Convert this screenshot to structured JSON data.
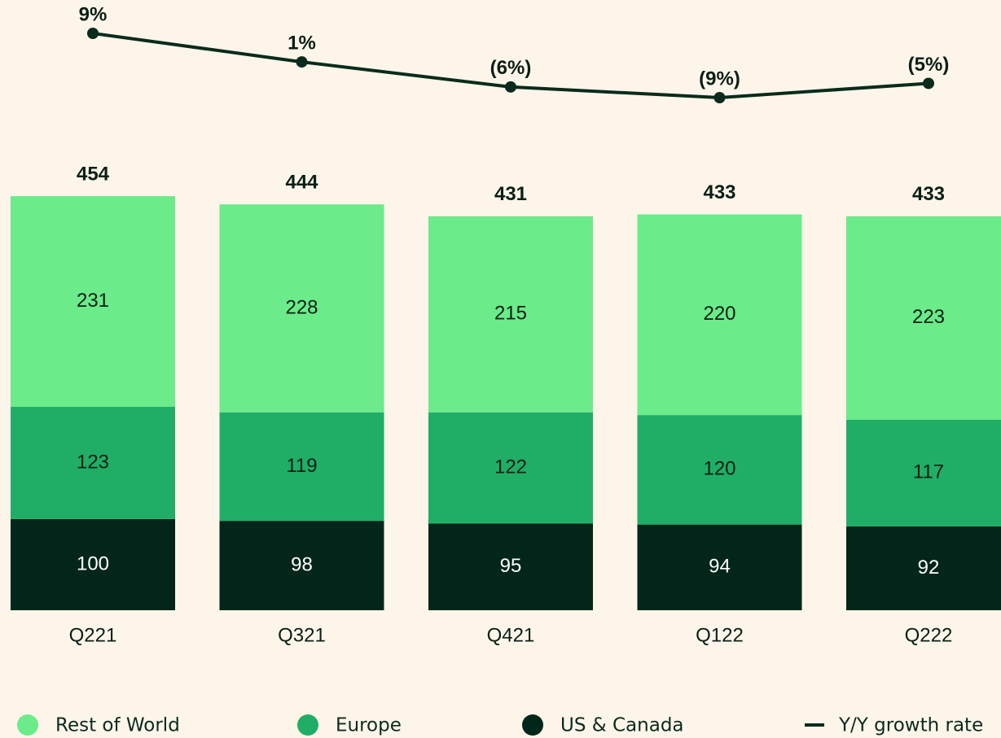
{
  "chart_data": {
    "type": "bar",
    "stacked": true,
    "categories": [
      "Q221",
      "Q321",
      "Q421",
      "Q122",
      "Q222"
    ],
    "series": [
      {
        "name": "US & Canada",
        "color": "#03261a",
        "values": [
          100,
          98,
          95,
          94,
          92
        ]
      },
      {
        "name": "Europe",
        "color": "#20ae67",
        "values": [
          123,
          119,
          122,
          120,
          117
        ]
      },
      {
        "name": "Rest of World",
        "color": "#6beb8a",
        "values": [
          231,
          228,
          215,
          220,
          223
        ]
      },
      {
        "name": "Y/Y growth rate",
        "type": "line",
        "axis": "y2",
        "color": "#0a2b1c",
        "values": [
          9,
          1,
          -6,
          -9,
          -5
        ],
        "value_labels": [
          "9%",
          "1%",
          "(6%)",
          "(9%)",
          "(5%)"
        ]
      }
    ],
    "totals": [
      454,
      444,
      431,
      433,
      433
    ],
    "ylim": [
      0,
      500
    ],
    "y2lim": [
      -20,
      10
    ],
    "legend_order": [
      2,
      1,
      0,
      3
    ]
  }
}
